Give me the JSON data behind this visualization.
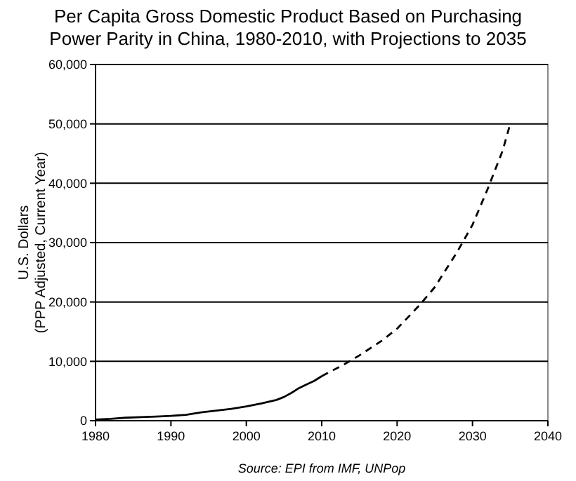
{
  "chart_data": {
    "type": "line",
    "title": "Per Capita Gross Domestic Product Based on Purchasing Power Parity in China, 1980-2010, with Projections to 2035",
    "ylabel": "U.S. Dollars\n(PPP Adjusted, Current Year)",
    "annotations": [
      "Source: EPI from IMF, UNPop"
    ],
    "series": [
      {
        "color": "#000000",
        "line_style": "solid",
        "x": [
          1980,
          1982,
          1984,
          1986,
          1988,
          1990,
          1992,
          1994,
          1996,
          1998,
          2000,
          2002,
          2004,
          2005,
          2006,
          2007,
          2008,
          2009,
          2010
        ],
        "values": [
          200,
          300,
          500,
          600,
          700,
          800,
          1000,
          1400,
          1700,
          2000,
          2400,
          2900,
          3500,
          4000,
          4700,
          5500,
          6100,
          6700,
          7500
        ]
      },
      {
        "color": "#000000",
        "line_style": "dashed",
        "x": [
          2010,
          2013,
          2015,
          2018,
          2020,
          2023,
          2025,
          2028,
          2030,
          2032,
          2034,
          2035
        ],
        "values": [
          7500,
          9500,
          11000,
          13500,
          15500,
          19500,
          22500,
          28500,
          33000,
          39000,
          45500,
          50000
        ]
      }
    ],
    "xlim": [
      1980,
      2040
    ],
    "xticks": [
      1980,
      1990,
      2000,
      2010,
      2020,
      2030,
      2040
    ],
    "ylim": [
      0,
      60000
    ],
    "yticks": [
      {
        "value": 0,
        "label": "0"
      },
      {
        "value": 10000,
        "label": "10,000"
      },
      {
        "value": 20000,
        "label": "20,000"
      },
      {
        "value": 30000,
        "label": "30,000"
      },
      {
        "value": 40000,
        "label": "40,000"
      },
      {
        "value": 50000,
        "label": "50,000"
      },
      {
        "value": 60000,
        "label": "60,000"
      }
    ],
    "grid": "y",
    "marker": "none"
  }
}
